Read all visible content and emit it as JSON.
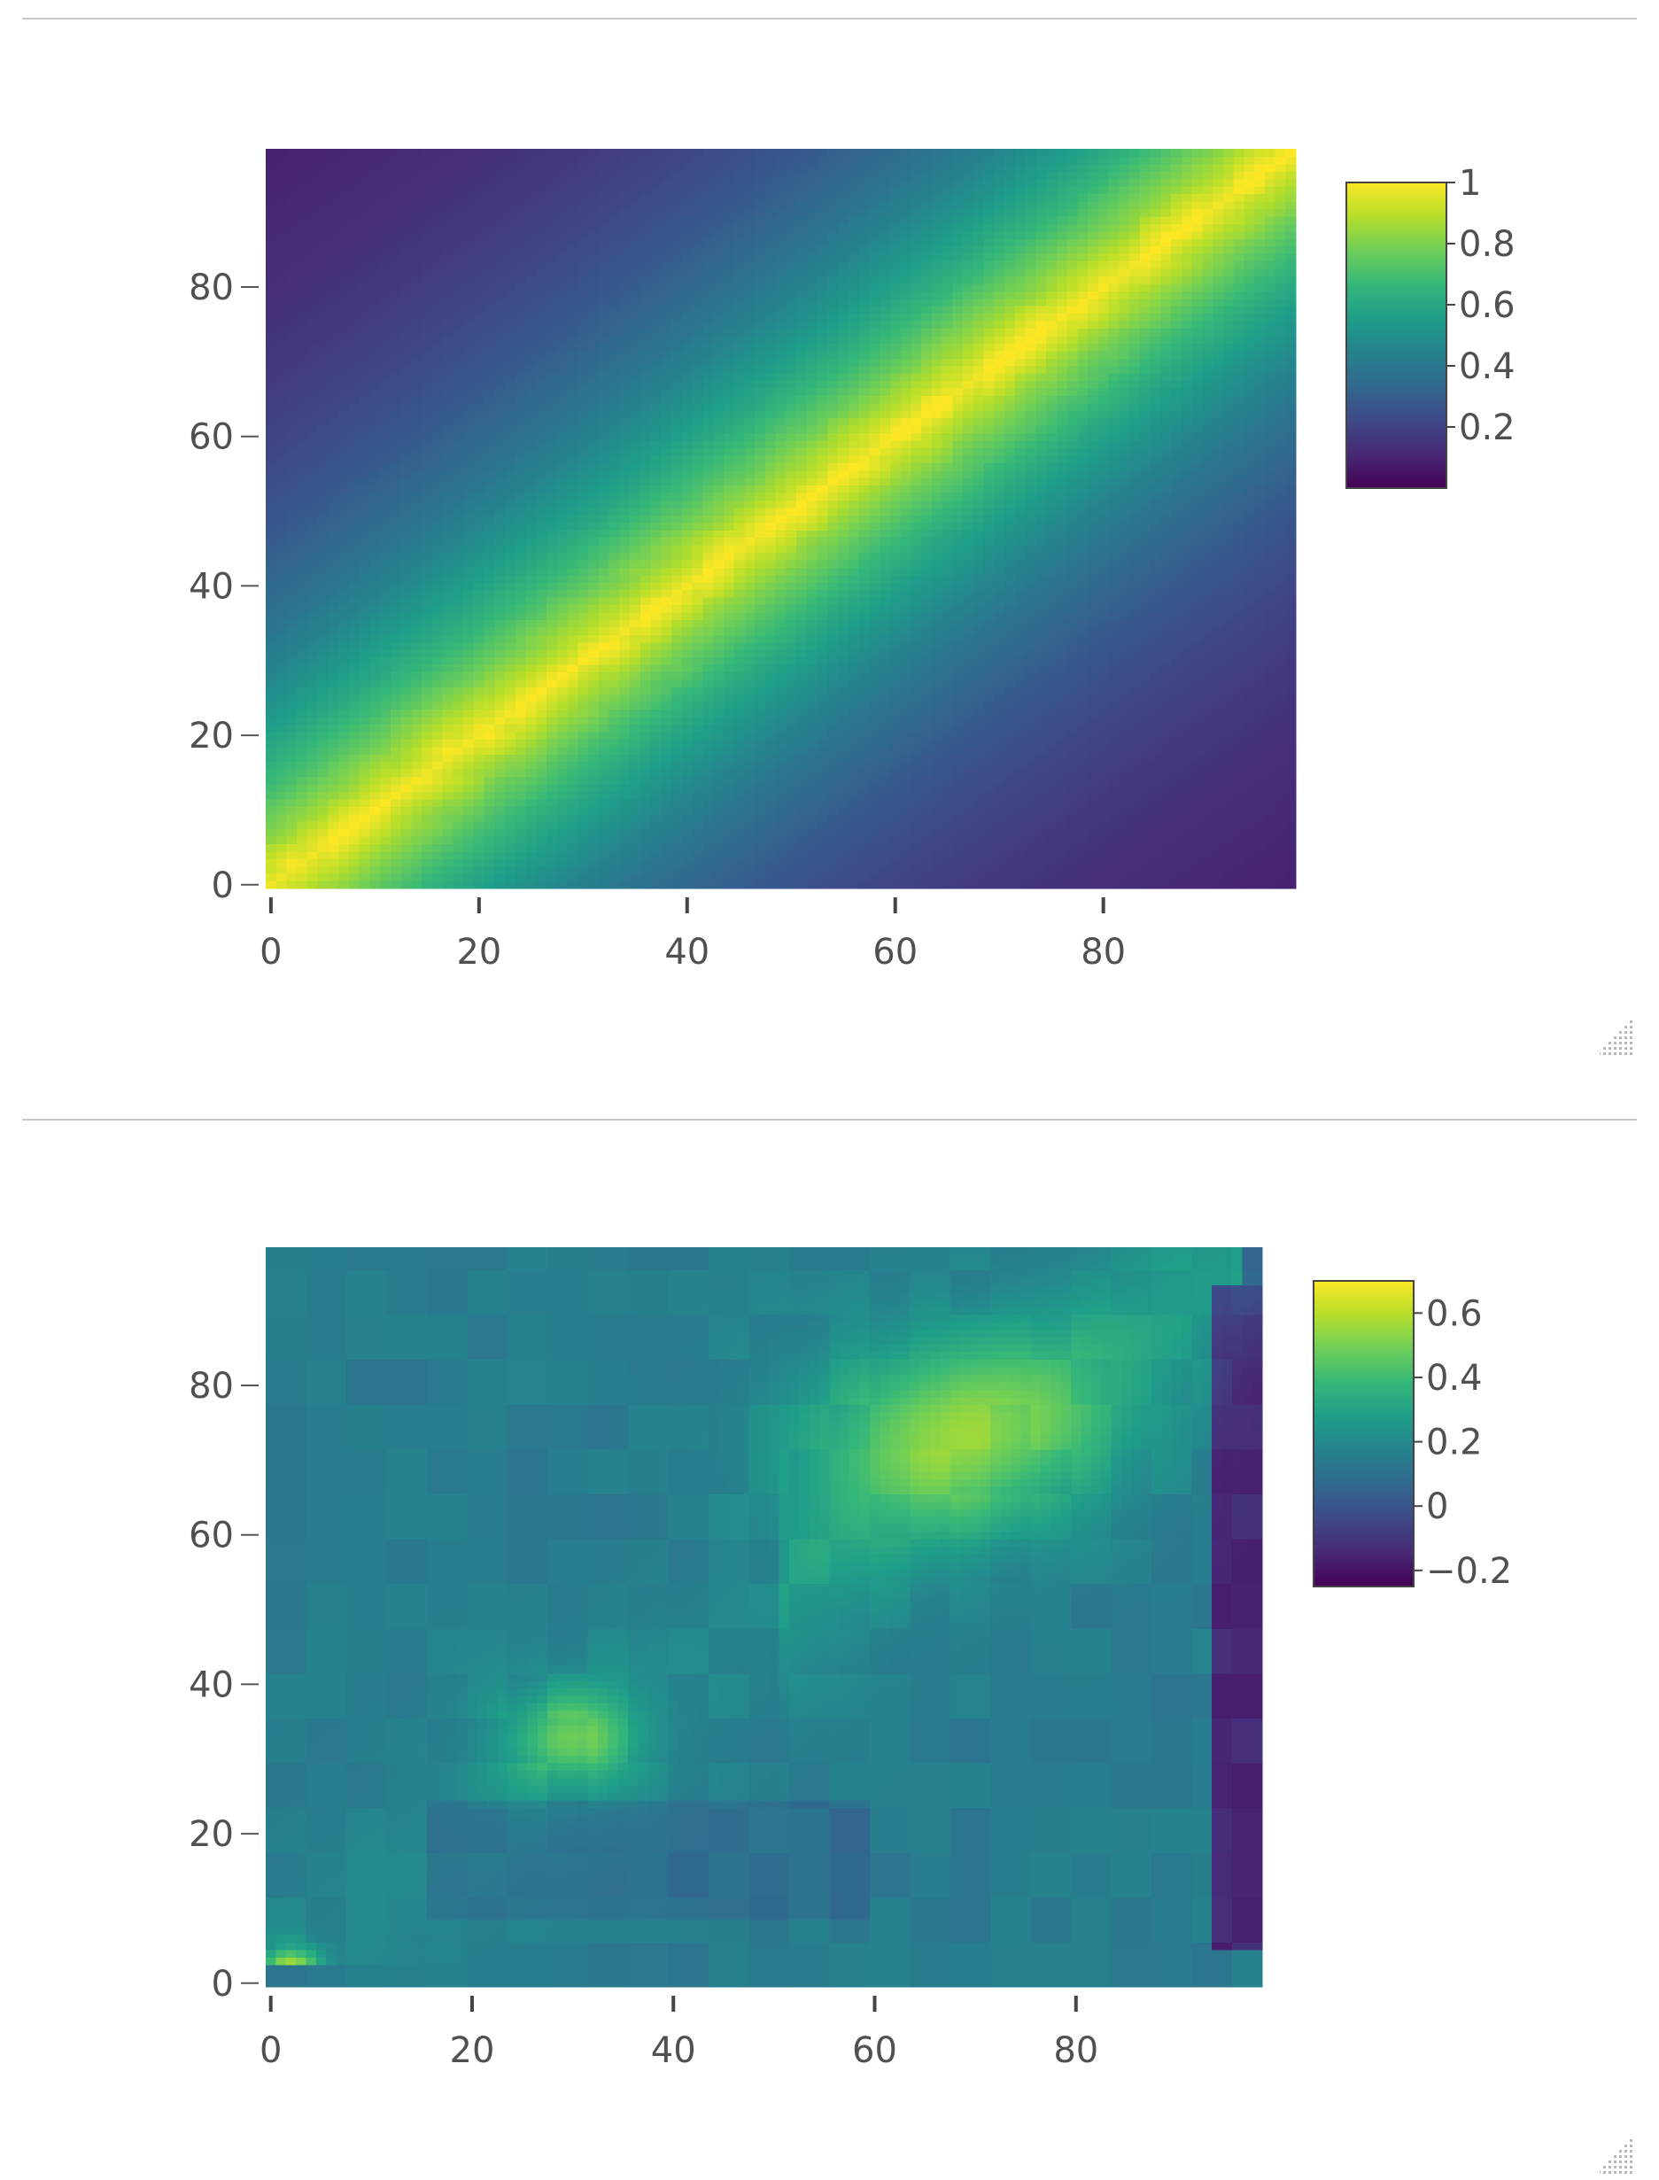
{
  "chart_data": [
    {
      "type": "heatmap",
      "title": "",
      "xlabel": "",
      "ylabel": "",
      "x_range": [
        0,
        99
      ],
      "y_range": [
        0,
        99
      ],
      "x_tick_labels": [
        "0",
        "20",
        "40",
        "60",
        "80"
      ],
      "y_tick_labels": [
        "0",
        "20",
        "40",
        "60",
        "80"
      ],
      "x_tick_values": [
        0,
        20,
        40,
        60,
        80
      ],
      "y_tick_values": [
        0,
        20,
        40,
        60,
        80
      ],
      "colorscale": "viridis",
      "colorbar": {
        "min": 0.0,
        "max": 1.0,
        "tick_values": [
          1,
          0.8,
          0.6,
          0.4,
          0.2
        ],
        "tick_labels": [
          "1",
          "0.8",
          "0.6",
          "0.4",
          "0.2"
        ]
      },
      "description": "correlation-like matrix: values near 1 along the main diagonal, decaying to ~0.05 at the top-left and bottom-right corners",
      "diagonal_value": 1.0,
      "corner_value": 0.05
    },
    {
      "type": "heatmap",
      "title": "",
      "xlabel": "",
      "ylabel": "",
      "x_range": [
        0,
        99
      ],
      "y_range": [
        0,
        99
      ],
      "x_tick_labels": [
        "0",
        "20",
        "40",
        "60",
        "80"
      ],
      "y_tick_labels": [
        "0",
        "20",
        "40",
        "60",
        "80"
      ],
      "x_tick_values": [
        0,
        20,
        40,
        60,
        80
      ],
      "y_tick_values": [
        0,
        20,
        40,
        60,
        80
      ],
      "colorscale": "viridis",
      "colorbar": {
        "min": -0.25,
        "max": 0.7,
        "tick_values": [
          0.6,
          0.4,
          0.2,
          0,
          -0.2
        ],
        "tick_labels": [
          "0.6",
          "0.4",
          "0.2",
          "0",
          "−0.2"
        ]
      },
      "description": "blocky residual matrix: mostly 0.1–0.3, hotspots ~0.45 near (29,32) and ~0.5 around (55–85, 60–85), ~0.65 near (2,2), dark (~−0.2) band at x≈95–99",
      "hotspots": [
        {
          "x": 29,
          "y": 32,
          "value": 0.45
        },
        {
          "x": 70,
          "y": 72,
          "value": 0.5
        },
        {
          "x": 2,
          "y": 2,
          "value": 0.65
        }
      ]
    }
  ],
  "colors": {
    "divider": "#c8c8c8",
    "tick_text": "#505050",
    "viridis": [
      "#440154",
      "#482878",
      "#3e4989",
      "#31688e",
      "#26828e",
      "#1f9e89",
      "#35b779",
      "#6ece58",
      "#b5de2b",
      "#fde725"
    ]
  },
  "icons": {
    "resize_handle": "resize-handle-icon"
  }
}
